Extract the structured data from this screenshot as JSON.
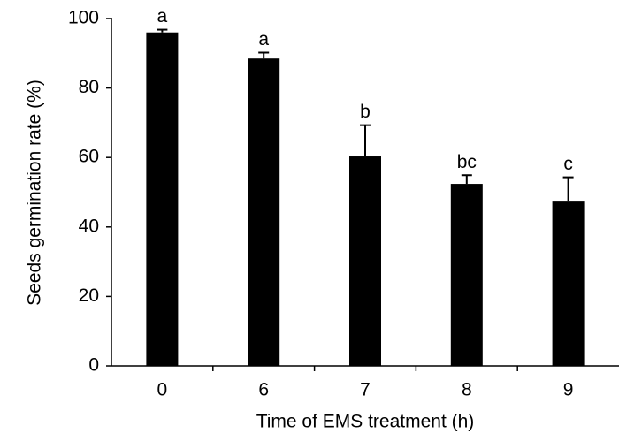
{
  "chart_data": {
    "type": "bar",
    "xlabel": "Time of EMS treatment (h)",
    "ylabel": "Seeds germination rate (%)",
    "categories": [
      "0",
      "6",
      "7",
      "8",
      "9"
    ],
    "values": [
      96,
      88.5,
      60.3,
      52.4,
      47.3
    ],
    "errors": [
      0.8,
      1.7,
      9,
      2.5,
      7
    ],
    "annotations": [
      "a",
      "a",
      "b",
      "bc",
      "c"
    ],
    "color": "#000000",
    "ylim": [
      0,
      100
    ],
    "yticks": [
      0,
      20,
      40,
      60,
      80,
      100
    ],
    "grid": false
  }
}
